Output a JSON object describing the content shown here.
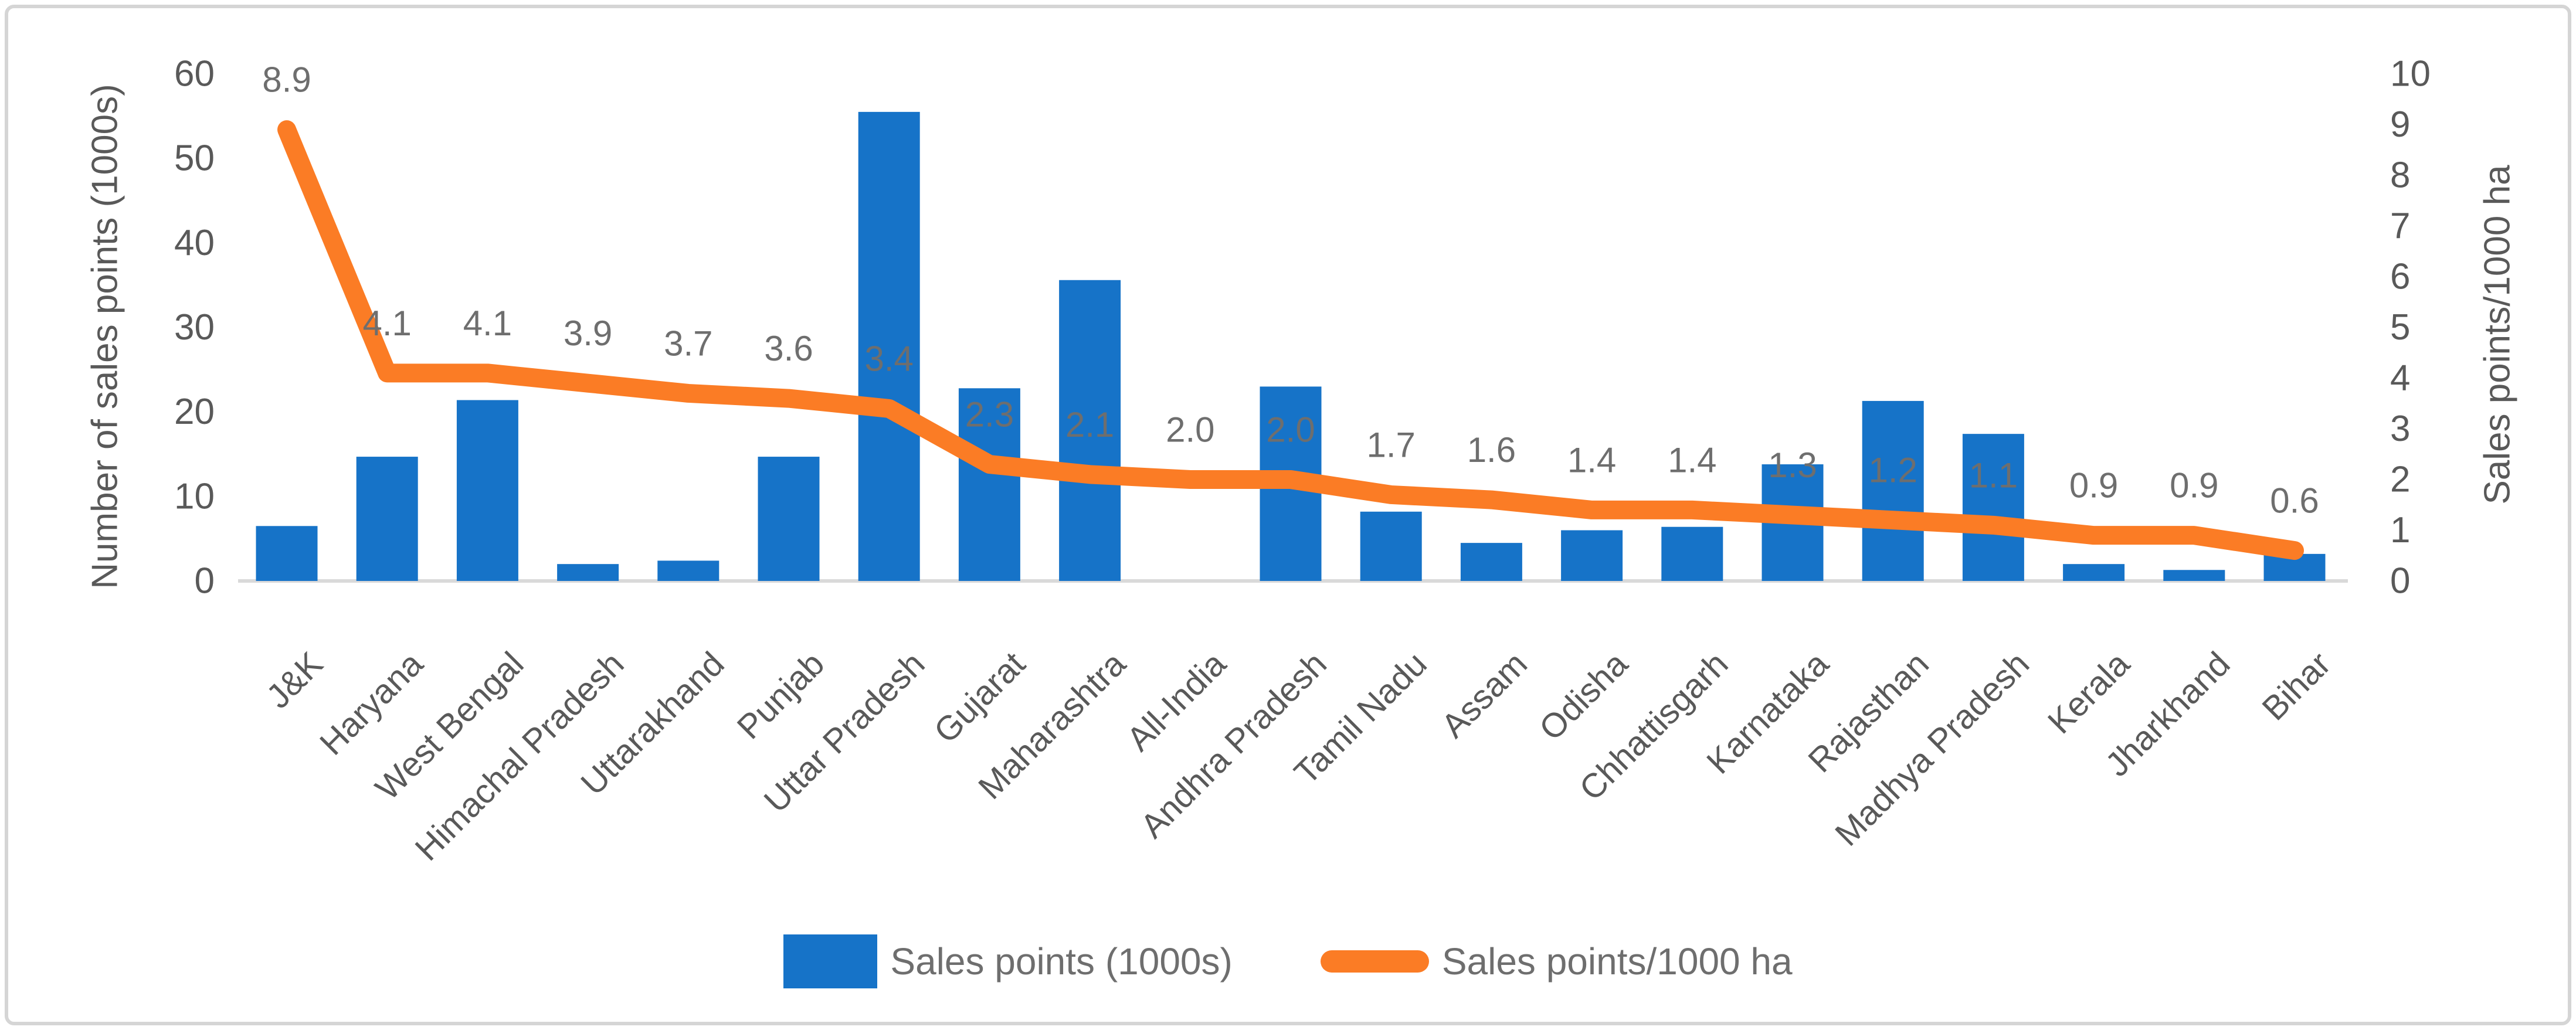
{
  "chart_data": {
    "type": "combo-bar-line",
    "categories": [
      "J&K",
      "Haryana",
      "West Bengal",
      "Himachal Pradesh",
      "Uttarakhand",
      "Punjab",
      "Uttar Pradesh",
      "Gujarat",
      "Maharashtra",
      "All-India",
      "Andhra Pradesh",
      "Tamil Nadu",
      "Assam",
      "Odisha",
      "Chhattisgarh",
      "Karnataka",
      "Rajasthan",
      "Madhya Pradesh",
      "Kerala",
      "Jharkhand",
      "Bihar"
    ],
    "series": [
      {
        "name": "Sales points (1000s)",
        "type": "bar",
        "axis": "left",
        "color": "#1673C8",
        "values": [
          6.5,
          14.7,
          21.4,
          2.0,
          2.4,
          14.7,
          55.5,
          22.8,
          35.6,
          null,
          23.0,
          8.2,
          4.5,
          6.0,
          6.4,
          13.8,
          21.3,
          17.4,
          2.0,
          1.3,
          3.2
        ]
      },
      {
        "name": "Sales points/1000 ha",
        "type": "line",
        "axis": "right",
        "color": "#FB7C25",
        "values": [
          8.9,
          4.1,
          4.1,
          3.9,
          3.7,
          3.6,
          3.4,
          2.3,
          2.1,
          2.0,
          2.0,
          1.7,
          1.6,
          1.4,
          1.4,
          1.3,
          1.2,
          1.1,
          0.9,
          0.9,
          0.6
        ],
        "show_labels": true
      }
    ],
    "left_axis": {
      "title": "Number of sales points (1000s)",
      "min": 0,
      "max": 60,
      "step": 10
    },
    "right_axis": {
      "title": "Sales points/1000 ha",
      "min": 0,
      "max": 10,
      "step": 1
    },
    "legend_position": "bottom-center",
    "grid": "off",
    "colors": {
      "bar": "#1673C8",
      "line": "#FB7C25",
      "text": "#595959",
      "data_label": "#6E6E6E",
      "axis_line": "#D9D9D9",
      "frame_border": "#D5D5D5"
    }
  }
}
